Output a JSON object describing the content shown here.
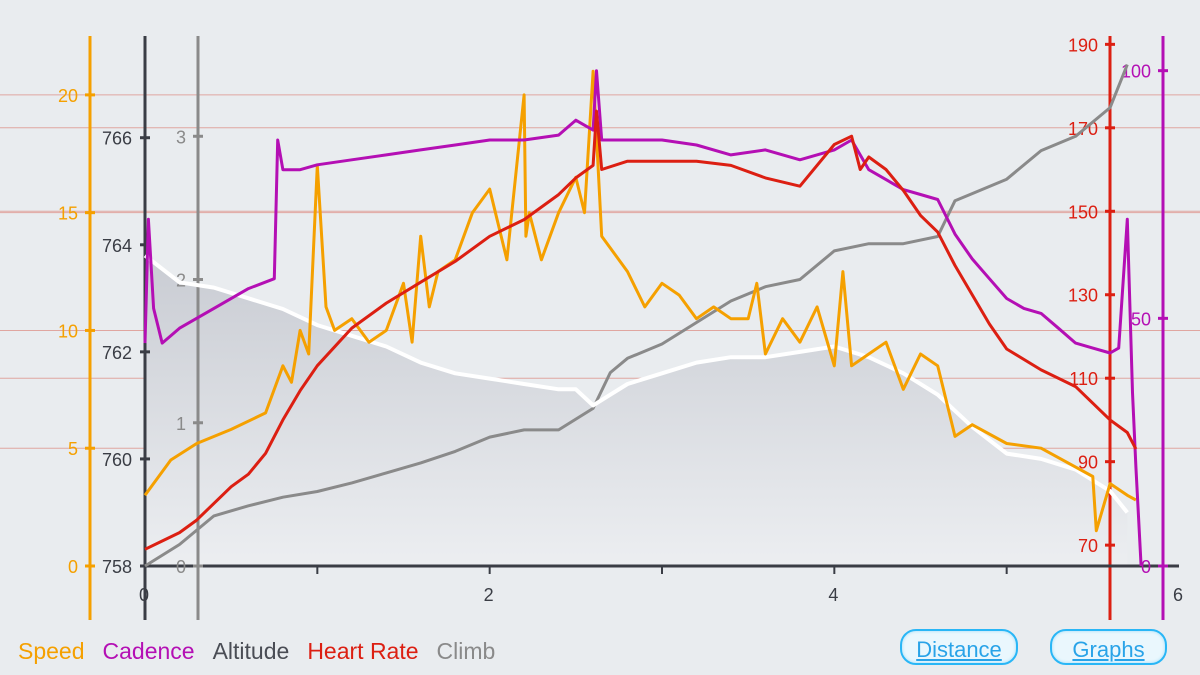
{
  "chart_data": {
    "type": "line",
    "x_axis": {
      "ticks": [
        0,
        2,
        4,
        6
      ],
      "range": [
        0,
        6
      ]
    },
    "axes": {
      "speed": {
        "color": "#f5a000",
        "ticks": [
          0,
          5,
          10,
          15,
          20
        ],
        "range": [
          0,
          22.5
        ]
      },
      "altitude": {
        "color": "#3a3d45",
        "ticks": [
          758,
          760,
          762,
          764,
          766
        ],
        "range": [
          758,
          767.9
        ]
      },
      "climb": {
        "color": "#8a8a8a",
        "ticks": [
          0,
          1,
          2,
          3
        ],
        "range": [
          0,
          3.7
        ]
      },
      "heart_rate": {
        "color": "#dc1f12",
        "ticks": [
          70,
          90,
          110,
          130,
          150,
          170,
          190
        ],
        "range": [
          65,
          192
        ]
      },
      "cadence": {
        "color": "#b40fb4",
        "ticks": [
          0,
          50,
          100
        ],
        "range": [
          0,
          107
        ]
      }
    },
    "series": [
      {
        "name": "Speed",
        "axis": "speed",
        "color": "#f5a000",
        "x": [
          0,
          0.15,
          0.3,
          0.5,
          0.7,
          0.8,
          0.85,
          0.9,
          0.95,
          1.0,
          1.05,
          1.1,
          1.2,
          1.3,
          1.4,
          1.5,
          1.55,
          1.6,
          1.65,
          1.7,
          1.8,
          1.9,
          2.0,
          2.1,
          2.2,
          2.21,
          2.23,
          2.3,
          2.4,
          2.5,
          2.55,
          2.6,
          2.65,
          2.7,
          2.8,
          2.9,
          3.0,
          3.1,
          3.2,
          3.3,
          3.4,
          3.5,
          3.55,
          3.6,
          3.7,
          3.8,
          3.9,
          4.0,
          4.05,
          4.1,
          4.2,
          4.3,
          4.4,
          4.5,
          4.6,
          4.7,
          4.8,
          5.0,
          5.2,
          5.4,
          5.5,
          5.52,
          5.6,
          5.7,
          5.75
        ],
        "values": [
          3,
          4.5,
          5.2,
          5.8,
          6.5,
          8.5,
          7.8,
          10,
          9,
          17,
          11,
          10,
          10.5,
          9.5,
          10,
          12,
          9.5,
          14,
          11,
          12.5,
          13,
          15,
          16,
          13,
          20,
          14,
          15,
          13,
          15,
          16.5,
          15,
          21,
          14,
          13.5,
          12.5,
          11,
          12,
          11.5,
          10.5,
          11,
          10.5,
          10.5,
          12,
          9,
          10.5,
          9.5,
          11,
          8.5,
          12.5,
          8.5,
          9,
          9.5,
          7.5,
          9,
          8.5,
          5.5,
          6,
          5.2,
          5,
          4.2,
          3.8,
          1.5,
          3.5,
          3,
          2.8
        ]
      },
      {
        "name": "Cadence",
        "axis": "cadence",
        "color": "#b40fb4",
        "x": [
          0,
          0.02,
          0.05,
          0.1,
          0.2,
          0.4,
          0.6,
          0.75,
          0.77,
          0.8,
          0.9,
          1.0,
          1.2,
          1.4,
          1.6,
          1.8,
          2.0,
          2.2,
          2.4,
          2.5,
          2.6,
          2.62,
          2.65,
          2.8,
          3.0,
          3.2,
          3.4,
          3.6,
          3.8,
          4.0,
          4.1,
          4.2,
          4.3,
          4.4,
          4.5,
          4.6,
          4.7,
          4.8,
          4.9,
          5.0,
          5.1,
          5.2,
          5.3,
          5.4,
          5.5,
          5.6,
          5.65,
          5.7,
          5.73,
          5.75,
          5.78
        ],
        "values": [
          45,
          70,
          52,
          45,
          48,
          52,
          56,
          58,
          86,
          80,
          80,
          81,
          82,
          83,
          84,
          85,
          86,
          86,
          87,
          90,
          88,
          100,
          86,
          86,
          86,
          85,
          83,
          84,
          82,
          84,
          86,
          80,
          78,
          76,
          75,
          74,
          67,
          62,
          58,
          54,
          52,
          51,
          48,
          45,
          44,
          43,
          44,
          70,
          35,
          20,
          0
        ]
      },
      {
        "name": "Altitude",
        "axis": "altitude",
        "color": "#ffffff",
        "x": [
          0,
          0.2,
          0.4,
          0.6,
          0.8,
          1.0,
          1.2,
          1.4,
          1.6,
          1.8,
          2.0,
          2.2,
          2.4,
          2.5,
          2.6,
          2.7,
          2.8,
          3.0,
          3.2,
          3.4,
          3.6,
          3.8,
          4.0,
          4.2,
          4.4,
          4.6,
          4.8,
          5.0,
          5.2,
          5.4,
          5.6,
          5.7
        ],
        "values": [
          763.8,
          763.3,
          763.2,
          763.0,
          762.8,
          762.5,
          762.3,
          762.1,
          761.8,
          761.6,
          761.5,
          761.4,
          761.3,
          761.3,
          761.0,
          761.2,
          761.4,
          761.6,
          761.8,
          761.9,
          761.9,
          762.0,
          762.1,
          761.9,
          761.6,
          761.2,
          760.6,
          760.1,
          760.0,
          759.8,
          759.4,
          759.0
        ]
      },
      {
        "name": "Heart Rate",
        "axis": "heart_rate",
        "color": "#dc1f12",
        "x": [
          0,
          0.1,
          0.2,
          0.3,
          0.4,
          0.5,
          0.6,
          0.7,
          0.8,
          0.9,
          1.0,
          1.2,
          1.4,
          1.6,
          1.8,
          2.0,
          2.2,
          2.4,
          2.5,
          2.6,
          2.62,
          2.65,
          2.8,
          3.0,
          3.2,
          3.4,
          3.6,
          3.8,
          4.0,
          4.1,
          4.15,
          4.2,
          4.3,
          4.4,
          4.5,
          4.6,
          4.7,
          4.8,
          4.9,
          5.0,
          5.2,
          5.4,
          5.6,
          5.7,
          5.75
        ],
        "values": [
          69,
          71,
          73,
          76,
          80,
          84,
          87,
          92,
          100,
          107,
          113,
          122,
          128,
          133,
          138,
          144,
          148,
          154,
          158,
          161,
          174,
          160,
          162,
          162,
          162,
          161,
          158,
          156,
          166,
          168,
          160,
          163,
          160,
          155,
          149,
          145,
          137,
          130,
          123,
          117,
          112,
          108,
          100,
          97,
          93
        ]
      },
      {
        "name": "Climb",
        "axis": "climb",
        "color": "#8a8a8a",
        "x": [
          0,
          0.2,
          0.4,
          0.6,
          0.8,
          1.0,
          1.2,
          1.4,
          1.6,
          1.8,
          2.0,
          2.2,
          2.4,
          2.6,
          2.7,
          2.8,
          3.0,
          3.2,
          3.4,
          3.6,
          3.8,
          4.0,
          4.2,
          4.4,
          4.6,
          4.7,
          4.8,
          5.0,
          5.2,
          5.4,
          5.6,
          5.7
        ],
        "values": [
          0,
          0.15,
          0.35,
          0.42,
          0.48,
          0.52,
          0.58,
          0.65,
          0.72,
          0.8,
          0.9,
          0.95,
          0.95,
          1.1,
          1.35,
          1.45,
          1.55,
          1.7,
          1.85,
          1.95,
          2.0,
          2.2,
          2.25,
          2.25,
          2.3,
          2.55,
          2.6,
          2.7,
          2.9,
          3.0,
          3.2,
          3.5
        ]
      }
    ]
  },
  "legend": [
    {
      "label": "Speed",
      "color": "#f5a000"
    },
    {
      "label": "Cadence",
      "color": "#b40fb4"
    },
    {
      "label": "Altitude",
      "color": "#4a4d55"
    },
    {
      "label": "Heart Rate",
      "color": "#dc1f12"
    },
    {
      "label": "Climb",
      "color": "#8a8a8a"
    }
  ],
  "buttons": {
    "distance": "Distance",
    "graphs": "Graphs"
  }
}
